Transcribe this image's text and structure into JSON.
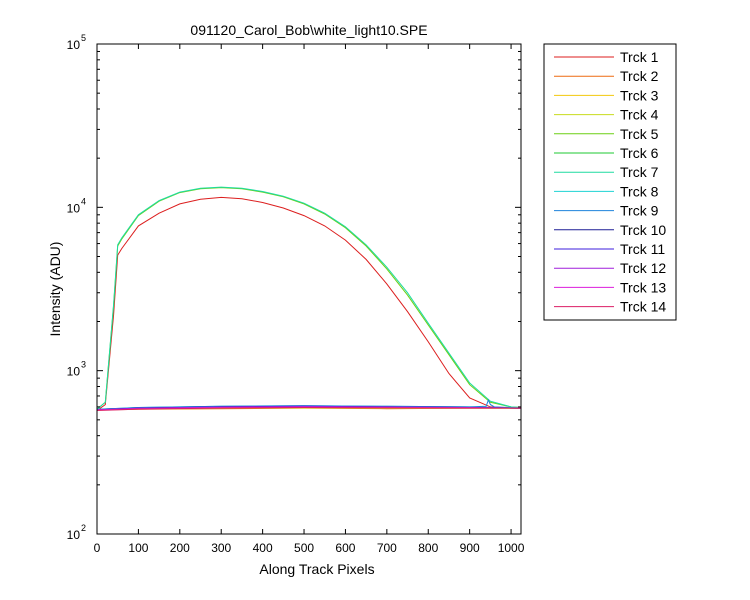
{
  "chart_data": {
    "type": "line",
    "title": "091120_Carol_Bob\\white_light10.SPE",
    "xlabel": "Along Track Pixels",
    "ylabel": "Intensity (ADU)",
    "xlim": [
      0,
      1024
    ],
    "ylim": [
      100,
      100000
    ],
    "yscale": "log",
    "grid": false,
    "legend_position": "outside-right",
    "x_ticks": [
      0,
      100,
      200,
      300,
      400,
      500,
      600,
      700,
      800,
      900,
      1000
    ],
    "x_tick_labels": [
      "0",
      "100",
      "200",
      "300",
      "400",
      "500",
      "600",
      "700",
      "800",
      "900",
      "1000"
    ],
    "y_ticks": [
      {
        "value": 100,
        "base": "10",
        "exp": "2"
      },
      {
        "value": 1000,
        "base": "10",
        "exp": "3"
      },
      {
        "value": 10000,
        "base": "10",
        "exp": "4"
      },
      {
        "value": 100000,
        "base": "10",
        "exp": "5"
      }
    ],
    "series": [
      {
        "name": "Trck 1",
        "color": "#dc1e1e",
        "x": [
          0,
          20,
          40,
          50,
          60,
          100,
          150,
          200,
          250,
          300,
          350,
          400,
          450,
          500,
          550,
          600,
          650,
          700,
          750,
          800,
          850,
          900,
          950,
          1000,
          1024
        ],
        "y": [
          570,
          620,
          2200,
          5100,
          5600,
          7700,
          9200,
          10500,
          11200,
          11500,
          11300,
          10700,
          9900,
          8900,
          7700,
          6300,
          4800,
          3400,
          2300,
          1500,
          960,
          680,
          600,
          590,
          590
        ]
      },
      {
        "name": "Trck 2",
        "color": "#ee6a10",
        "x": [
          0,
          100,
          300,
          500,
          700,
          900,
          1024
        ],
        "y": [
          575,
          580,
          585,
          590,
          585,
          590,
          590
        ]
      },
      {
        "name": "Trck 3",
        "color": "#f2c80c",
        "x": [
          0,
          100,
          300,
          500,
          700,
          900,
          1024
        ],
        "y": [
          575,
          582,
          588,
          592,
          588,
          590,
          590
        ]
      },
      {
        "name": "Trck 4",
        "color": "#c8dc1e",
        "x": [
          0,
          100,
          300,
          500,
          700,
          900,
          1024
        ],
        "y": [
          575,
          583,
          590,
          593,
          590,
          590,
          590
        ]
      },
      {
        "name": "Trck 5",
        "color": "#6ccf14",
        "x": [
          0,
          20,
          40,
          50,
          60,
          100,
          150,
          200,
          250,
          300,
          350,
          400,
          450,
          500,
          550,
          600,
          650,
          700,
          750,
          800,
          850,
          900,
          950,
          1000,
          1024
        ],
        "y": [
          580,
          640,
          2500,
          5800,
          6400,
          8900,
          10900,
          12300,
          13000,
          13200,
          13000,
          12400,
          11600,
          10500,
          9100,
          7500,
          5800,
          4200,
          2900,
          1900,
          1250,
          820,
          640,
          600,
          595
        ]
      },
      {
        "name": "Trck 6",
        "color": "#1ec832",
        "x": [
          0,
          100,
          300,
          500,
          700,
          900,
          1024
        ],
        "y": [
          580,
          590,
          600,
          605,
          600,
          595,
          590
        ]
      },
      {
        "name": "Trck 7",
        "color": "#1edca0",
        "x": [
          0,
          20,
          40,
          50,
          60,
          100,
          150,
          200,
          250,
          300,
          350,
          400,
          450,
          500,
          550,
          600,
          650,
          700,
          750,
          800,
          850,
          900,
          950,
          1000,
          1024
        ],
        "y": [
          580,
          640,
          2550,
          5900,
          6500,
          9000,
          11000,
          12400,
          13100,
          13300,
          13100,
          12500,
          11700,
          10600,
          9200,
          7600,
          5900,
          4300,
          3000,
          1950,
          1280,
          840,
          650,
          600,
          595
        ]
      },
      {
        "name": "Trck 8",
        "color": "#1ed2d2",
        "x": [
          0,
          100,
          300,
          500,
          700,
          900,
          1024
        ],
        "y": [
          580,
          595,
          605,
          610,
          605,
          600,
          590
        ]
      },
      {
        "name": "Trck 9",
        "color": "#1e82dc",
        "x": [
          0,
          100,
          300,
          500,
          700,
          900,
          940,
          945,
          950,
          960,
          1024
        ],
        "y": [
          580,
          595,
          605,
          610,
          605,
          600,
          605,
          660,
          620,
          600,
          590
        ]
      },
      {
        "name": "Trck 10",
        "color": "#1e1e96",
        "x": [
          0,
          100,
          300,
          500,
          700,
          900,
          1024
        ],
        "y": [
          575,
          590,
          600,
          605,
          600,
          595,
          590
        ]
      },
      {
        "name": "Trck 11",
        "color": "#3c1edc",
        "x": [
          0,
          100,
          300,
          500,
          700,
          900,
          1024
        ],
        "y": [
          575,
          590,
          600,
          605,
          600,
          595,
          590
        ]
      },
      {
        "name": "Trck 12",
        "color": "#a01edc",
        "x": [
          0,
          100,
          300,
          500,
          700,
          900,
          1024
        ],
        "y": [
          575,
          588,
          598,
          602,
          598,
          595,
          590
        ]
      },
      {
        "name": "Trck 13",
        "color": "#dc1edc",
        "x": [
          0,
          100,
          300,
          500,
          700,
          900,
          1024
        ],
        "y": [
          575,
          585,
          595,
          600,
          597,
          592,
          590
        ]
      },
      {
        "name": "Trck 14",
        "color": "#dc1e64",
        "x": [
          0,
          100,
          300,
          500,
          700,
          900,
          1024
        ],
        "y": [
          570,
          582,
          590,
          595,
          592,
          590,
          590
        ]
      }
    ]
  }
}
